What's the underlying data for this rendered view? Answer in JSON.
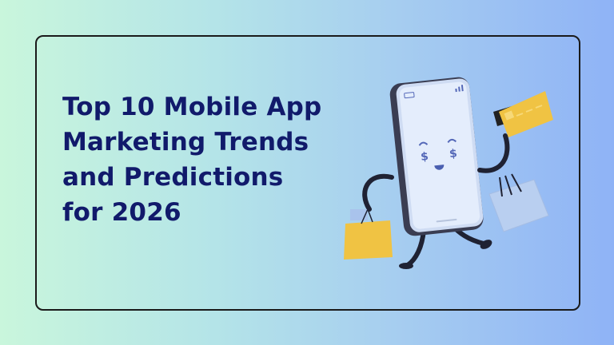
{
  "title_lines": [
    "Top 10 Mobile App",
    "Marketing Trends",
    "and Predictions",
    "for 2026"
  ],
  "illustration": {
    "subject": "phone-character-shopping",
    "face_glyph": "$",
    "colors": {
      "text": "#111a6b",
      "phone_body": "#3a3d52",
      "screen": "#dfe9fb",
      "bag_yellow": "#f0c343",
      "bag_blue": "#b9cff0",
      "card_yellow": "#f0c343",
      "accent": "#5468b8"
    }
  }
}
